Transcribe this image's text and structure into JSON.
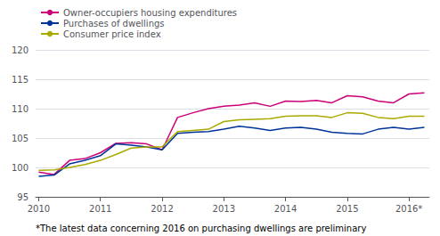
{
  "chart_data": {
    "type": "line",
    "annotations": [
      "*The latest data concerning 2016 on purchasing dwellings are preliminary"
    ],
    "x": [
      2010.0,
      2010.25,
      2010.5,
      2010.75,
      2011.0,
      2011.25,
      2011.5,
      2011.75,
      2012.0,
      2012.25,
      2012.5,
      2012.75,
      2013.0,
      2013.25,
      2013.5,
      2013.75,
      2014.0,
      2014.25,
      2014.5,
      2014.75,
      2015.0,
      2015.25,
      2015.5,
      2015.75,
      2016.0,
      2016.25
    ],
    "series": [
      {
        "name": "Owner-occupiers housing expenditures",
        "color": "#CC0077",
        "values": [
          99.2,
          98.8,
          101.2,
          101.5,
          102.5,
          104.1,
          104.2,
          104.0,
          103.0,
          108.5,
          109.3,
          110.0,
          110.4,
          110.6,
          111.0,
          110.4,
          111.3,
          111.2,
          111.4,
          111.0,
          112.2,
          112.0,
          111.3,
          111.0,
          112.5,
          112.7
        ]
      },
      {
        "name": "Purchases of dwellings",
        "color": "#003399",
        "values": [
          98.5,
          98.7,
          100.6,
          101.2,
          102.0,
          104.0,
          103.8,
          103.5,
          103.0,
          105.8,
          106.0,
          106.1,
          106.5,
          107.0,
          106.7,
          106.3,
          106.7,
          106.8,
          106.5,
          106.0,
          105.8,
          105.7,
          106.5,
          106.8,
          106.5,
          106.8
        ]
      },
      {
        "name": "Consumer price index",
        "color": "#AAAA00",
        "values": [
          99.5,
          99.6,
          100.0,
          100.5,
          101.2,
          102.2,
          103.3,
          103.5,
          103.5,
          106.1,
          106.3,
          106.5,
          107.8,
          108.1,
          108.2,
          108.3,
          108.7,
          108.8,
          108.8,
          108.5,
          109.3,
          109.2,
          108.5,
          108.3,
          108.7,
          108.7
        ]
      }
    ],
    "xlim": [
      2009.95,
      2016.33
    ],
    "xticks": [
      2010,
      2011,
      2012,
      2013,
      2014,
      2015,
      {
        "value": 2016,
        "label": "2016*"
      }
    ],
    "ylim": [
      95,
      120
    ],
    "yticks": [
      95,
      100,
      105,
      110,
      115,
      120
    ],
    "grid": true,
    "legend": "upper left"
  }
}
